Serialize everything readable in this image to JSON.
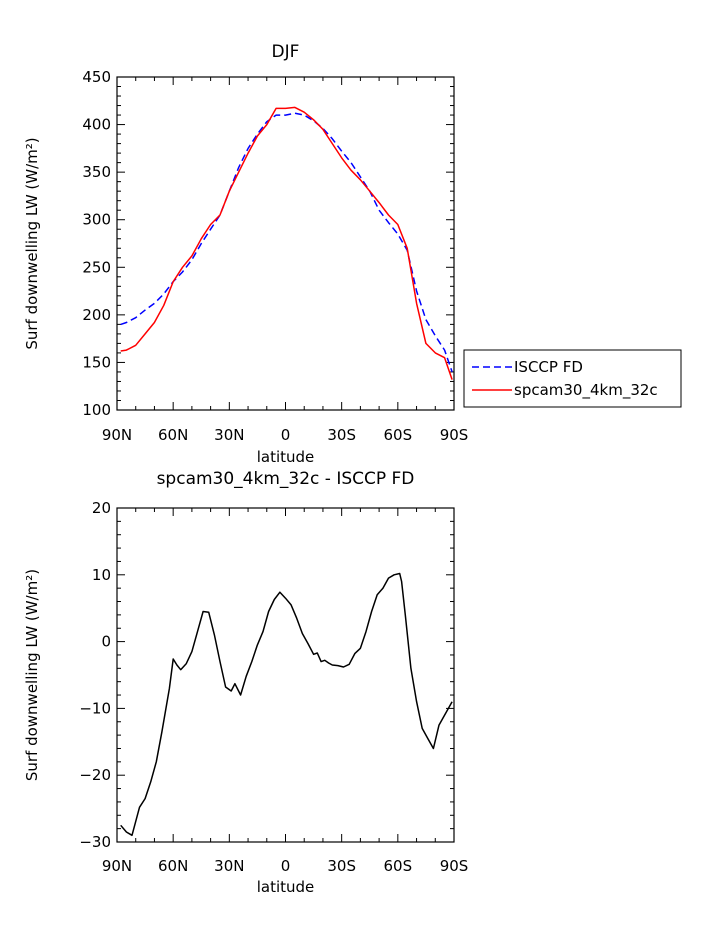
{
  "chart_data": [
    {
      "type": "line",
      "title": "DJF",
      "xlabel": "latitude",
      "ylabel": "Surf downwelling LW (W/m²)",
      "xlim": [
        -90,
        90
      ],
      "ylim": [
        100,
        450
      ],
      "x_ticks": [
        -90,
        -60,
        -30,
        0,
        30,
        60,
        90
      ],
      "x_tick_labels": [
        "90N",
        "60N",
        "30N",
        "0",
        "30S",
        "60S",
        "90S"
      ],
      "y_ticks": [
        100,
        150,
        200,
        250,
        300,
        350,
        400,
        450
      ],
      "y_tick_labels": [
        "100",
        "150",
        "200",
        "250",
        "300",
        "350",
        "400",
        "450"
      ],
      "grid": false,
      "legend_position": "right",
      "series": [
        {
          "name": "ISCCP FD",
          "color": "#0000ff",
          "dash": true,
          "x": [
            -88,
            -85,
            -80,
            -75,
            -70,
            -65,
            -60,
            -55,
            -50,
            -45,
            -40,
            -35,
            -30,
            -25,
            -20,
            -15,
            -10,
            -5,
            0,
            5,
            10,
            15,
            20,
            25,
            30,
            35,
            40,
            45,
            50,
            55,
            60,
            65,
            70,
            75,
            80,
            85,
            89
          ],
          "values": [
            190,
            192,
            197,
            205,
            212,
            222,
            235,
            245,
            258,
            275,
            290,
            305,
            330,
            355,
            375,
            390,
            403,
            410,
            410,
            412,
            410,
            404,
            396,
            385,
            372,
            360,
            345,
            330,
            310,
            297,
            285,
            268,
            225,
            195,
            178,
            163,
            140
          ]
        },
        {
          "name": "spcam30_4km_32c",
          "color": "#ff0000",
          "dash": false,
          "x": [
            -88,
            -85,
            -80,
            -75,
            -70,
            -65,
            -60,
            -55,
            -50,
            -45,
            -40,
            -35,
            -30,
            -25,
            -20,
            -15,
            -10,
            -5,
            0,
            5,
            10,
            15,
            20,
            25,
            30,
            35,
            40,
            45,
            50,
            55,
            60,
            65,
            70,
            75,
            80,
            85,
            89
          ],
          "values": [
            162,
            163,
            168,
            180,
            192,
            210,
            235,
            250,
            262,
            280,
            295,
            305,
            330,
            350,
            370,
            388,
            400,
            417,
            417,
            418,
            413,
            405,
            395,
            380,
            365,
            352,
            342,
            330,
            318,
            305,
            295,
            270,
            212,
            170,
            160,
            155,
            132
          ]
        }
      ]
    },
    {
      "type": "line",
      "title": "spcam30_4km_32c - ISCCP FD",
      "xlabel": "latitude",
      "ylabel": "Surf downwelling LW (W/m²)",
      "xlim": [
        -90,
        90
      ],
      "ylim": [
        -30,
        20
      ],
      "x_ticks": [
        -90,
        -60,
        -30,
        0,
        30,
        60,
        90
      ],
      "x_tick_labels": [
        "90N",
        "60N",
        "30N",
        "0",
        "30S",
        "60S",
        "90S"
      ],
      "y_ticks": [
        -30,
        -20,
        -10,
        0,
        10,
        20
      ],
      "y_tick_labels": [
        "−30",
        "−20",
        "−10",
        "0",
        "10",
        "20"
      ],
      "grid": false,
      "series": [
        {
          "color": "#000000",
          "x": [
            -88,
            -85,
            -82,
            -78,
            -75,
            -72,
            -69,
            -66,
            -62,
            -60,
            -58,
            -56,
            -53,
            -50,
            -47,
            -44,
            -41,
            -38,
            -35,
            -32,
            -29,
            -27,
            -24,
            -21,
            -18,
            -15,
            -12,
            -9,
            -6,
            -3,
            0,
            3,
            6,
            9,
            12,
            15,
            17,
            19,
            21,
            23,
            25,
            28,
            31,
            34,
            37,
            40,
            43,
            46,
            49,
            52,
            55,
            58,
            61,
            62,
            64,
            67,
            70,
            73,
            76,
            79,
            82,
            85,
            89
          ],
          "values": [
            -27.5,
            -28.5,
            -29,
            -24.8,
            -23.5,
            -21,
            -18,
            -13.5,
            -7,
            -2.6,
            -3.5,
            -4.2,
            -3.3,
            -1.5,
            1.5,
            4.5,
            4.4,
            1,
            -3,
            -6.8,
            -7.4,
            -6.3,
            -8,
            -5.2,
            -3,
            -0.5,
            1.5,
            4.5,
            6.3,
            7.4,
            6.5,
            5.5,
            3.5,
            1.2,
            -0.3,
            -1.9,
            -1.7,
            -3,
            -2.8,
            -3.2,
            -3.5,
            -3.6,
            -3.8,
            -3.4,
            -1.8,
            -1,
            1.5,
            4.5,
            7,
            8,
            9.5,
            10,
            10.2,
            9,
            4,
            -4,
            -9,
            -13,
            -14.5,
            -16,
            -12.5,
            -11,
            -9
          ]
        }
      ]
    }
  ]
}
